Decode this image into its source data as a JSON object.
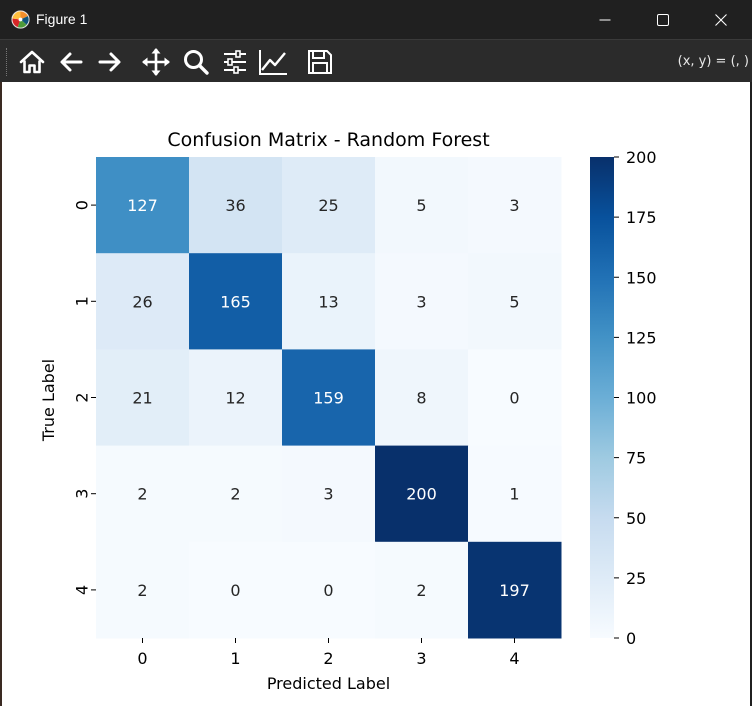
{
  "window": {
    "title": "Figure 1",
    "controls": {
      "minimize": "minimize",
      "maximize": "maximize",
      "close": "close"
    }
  },
  "toolbar": {
    "tools": [
      {
        "name": "home-icon",
        "label": "Home"
      },
      {
        "name": "back-arrow-icon",
        "label": "Back"
      },
      {
        "name": "forward-arrow-icon",
        "label": "Forward"
      },
      {
        "name": "pan-icon",
        "label": "Pan"
      },
      {
        "name": "zoom-icon",
        "label": "Zoom"
      },
      {
        "name": "subplots-icon",
        "label": "Configure subplots"
      },
      {
        "name": "edit-axis-icon",
        "label": "Edit axis"
      },
      {
        "name": "save-icon",
        "label": "Save"
      }
    ],
    "coords_text": "(x, y) = (, )"
  },
  "chart_data": {
    "type": "heatmap",
    "title": "Confusion Matrix - Random Forest",
    "xlabel": "Predicted Label",
    "ylabel": "True Label",
    "x_categories": [
      "0",
      "1",
      "2",
      "3",
      "4"
    ],
    "y_categories": [
      "0",
      "1",
      "2",
      "3",
      "4"
    ],
    "values": [
      [
        127,
        36,
        25,
        5,
        3
      ],
      [
        26,
        165,
        13,
        3,
        5
      ],
      [
        21,
        12,
        159,
        8,
        0
      ],
      [
        2,
        2,
        3,
        200,
        1
      ],
      [
        2,
        0,
        0,
        2,
        197
      ]
    ],
    "colormap": "Blues",
    "vmin": 0,
    "vmax": 200,
    "colorbar_ticks": [
      0,
      25,
      50,
      75,
      100,
      125,
      150,
      175,
      200
    ],
    "annotations": true
  },
  "colors": {
    "titlebar_bg": "#202020",
    "toolbar_bg": "#2b2b2b",
    "canvas_bg": "#ffffff"
  }
}
